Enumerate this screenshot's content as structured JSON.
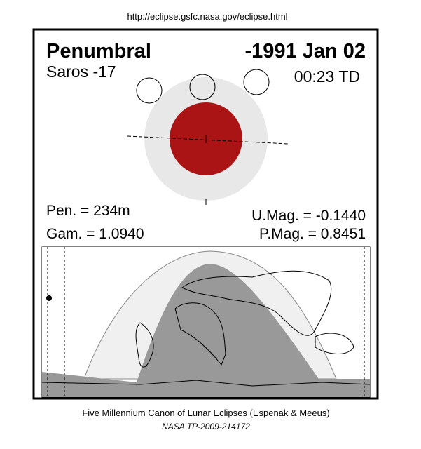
{
  "header": {
    "url": "http://eclipse.gsfc.nasa.gov/eclipse.html"
  },
  "eclipse": {
    "type": "Penumbral",
    "date": "-1991 Jan 02",
    "saros": "Saros -17",
    "time": "00:23 TD",
    "pen": "Pen. = 234m",
    "gam": "Gam. = 1.0940",
    "umag": "U.Mag. = -0.1440",
    "pmag": "P.Mag. = 0.8451"
  },
  "footer": {
    "line1": "Five Millennium Canon of Lunar Eclipses (Espenak & Meeus)",
    "line2": "NASA TP-2009-214172"
  }
}
